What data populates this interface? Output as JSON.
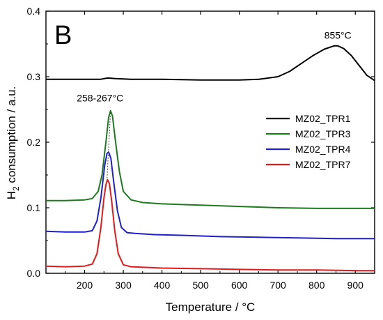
{
  "chart_data": {
    "type": "line",
    "panel_label": "B",
    "xlabel": "Temperature / °C",
    "ylabel_main": "H",
    "ylabel_sub": "2",
    "ylabel_rest": " consumption / a.u.",
    "xlim": [
      100,
      950
    ],
    "ylim": [
      0.0,
      0.4
    ],
    "xticks": [
      200,
      300,
      400,
      500,
      600,
      700,
      800,
      900
    ],
    "yticks": [
      0.0,
      0.1,
      0.2,
      0.3,
      0.4
    ],
    "ytick_labels": [
      "0.0",
      "0.1",
      "0.2",
      "0.3",
      "0.4"
    ],
    "legend_position": "upper-right",
    "annotations": [
      {
        "text": "855°C",
        "x": 855,
        "y": 0.358
      },
      {
        "text": "258-267°C",
        "x": 240,
        "y": 0.262
      }
    ],
    "reference_line": {
      "x": [
        258,
        267
      ],
      "y": [
        0.145,
        0.248
      ],
      "color": "#444444"
    },
    "series": [
      {
        "name": "MZ02_TPR1",
        "color": "#000000",
        "x": [
          100,
          150,
          200,
          240,
          260,
          280,
          320,
          400,
          500,
          600,
          650,
          700,
          730,
          760,
          790,
          820,
          845,
          855,
          870,
          890,
          910,
          930,
          950
        ],
        "y": [
          0.296,
          0.296,
          0.296,
          0.296,
          0.298,
          0.297,
          0.296,
          0.296,
          0.295,
          0.295,
          0.296,
          0.3,
          0.308,
          0.32,
          0.332,
          0.342,
          0.347,
          0.347,
          0.343,
          0.332,
          0.317,
          0.302,
          0.294
        ]
      },
      {
        "name": "MZ02_TPR3",
        "color": "#1e7a1e",
        "x": [
          100,
          150,
          200,
          220,
          235,
          245,
          255,
          262,
          267,
          272,
          280,
          290,
          300,
          320,
          350,
          400,
          500,
          600,
          700,
          800,
          900,
          950
        ],
        "y": [
          0.111,
          0.111,
          0.112,
          0.114,
          0.125,
          0.15,
          0.2,
          0.238,
          0.248,
          0.24,
          0.2,
          0.155,
          0.125,
          0.112,
          0.108,
          0.106,
          0.104,
          0.102,
          0.1,
          0.099,
          0.099,
          0.099
        ]
      },
      {
        "name": "MZ02_TPR4",
        "color": "#1f1fcc",
        "x": [
          100,
          150,
          200,
          220,
          232,
          242,
          252,
          258,
          262,
          268,
          275,
          285,
          295,
          310,
          330,
          380,
          450,
          550,
          650,
          750,
          850,
          950
        ],
        "y": [
          0.064,
          0.063,
          0.063,
          0.065,
          0.08,
          0.115,
          0.165,
          0.183,
          0.185,
          0.175,
          0.14,
          0.095,
          0.07,
          0.062,
          0.061,
          0.059,
          0.058,
          0.056,
          0.055,
          0.054,
          0.053,
          0.053
        ]
      },
      {
        "name": "MZ02_TPR7",
        "color": "#e31a1c",
        "x": [
          100,
          150,
          200,
          220,
          232,
          242,
          250,
          255,
          259,
          264,
          270,
          278,
          287,
          300,
          320,
          400,
          500,
          600,
          700,
          800,
          900,
          950
        ],
        "y": [
          0.011,
          0.01,
          0.011,
          0.014,
          0.03,
          0.07,
          0.115,
          0.135,
          0.143,
          0.137,
          0.11,
          0.065,
          0.03,
          0.013,
          0.01,
          0.008,
          0.007,
          0.006,
          0.005,
          0.005,
          0.004,
          0.004
        ]
      }
    ]
  }
}
